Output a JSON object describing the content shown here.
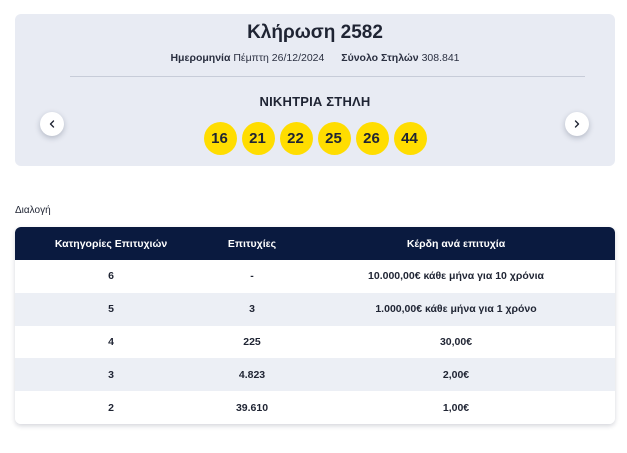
{
  "draw": {
    "title": "Κλήρωση 2582",
    "date_label": "Ημερομηνία",
    "date_value": "Πέμπτη 26/12/2024",
    "columns_label": "Σύνολο Στηλών",
    "columns_value": "308.841",
    "winning_label": "ΝΙΚΗΤΡΙΑ ΣΤΗΛΗ",
    "numbers": [
      "16",
      "21",
      "22",
      "25",
      "26",
      "44"
    ],
    "ball_color": "#ffdd00"
  },
  "nav": {
    "prev_icon": "chevron-left-icon",
    "next_icon": "chevron-right-icon"
  },
  "section": {
    "label": "Διαλογή"
  },
  "table": {
    "header_color": "#0a1a3f",
    "headers": [
      "Κατηγορίες Επιτυχιών",
      "Επιτυχίες",
      "Κέρδη ανά επιτυχία"
    ],
    "rows": [
      {
        "category": "6",
        "winners": "-",
        "prize": "10.000,00€ κάθε μήνα για 10 χρόνια"
      },
      {
        "category": "5",
        "winners": "3",
        "prize": "1.000,00€ κάθε μήνα για 1 χρόνο"
      },
      {
        "category": "4",
        "winners": "225",
        "prize": "30,00€"
      },
      {
        "category": "3",
        "winners": "4.823",
        "prize": "2,00€"
      },
      {
        "category": "2",
        "winners": "39.610",
        "prize": "1,00€"
      }
    ]
  }
}
